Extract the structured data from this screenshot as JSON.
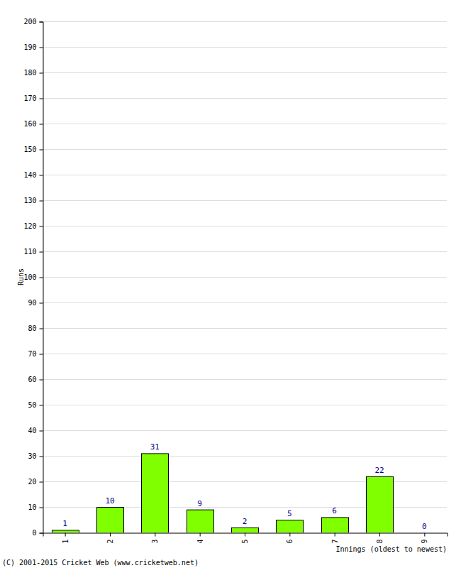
{
  "chart_data": {
    "type": "bar",
    "categories": [
      "1",
      "2",
      "3",
      "4",
      "5",
      "6",
      "7",
      "8",
      "9"
    ],
    "values": [
      1,
      10,
      31,
      9,
      2,
      5,
      6,
      22,
      0
    ],
    "color": "#80ff00",
    "ylim": [
      0,
      200
    ],
    "yticks": [
      0,
      10,
      20,
      30,
      40,
      50,
      60,
      70,
      80,
      90,
      100,
      110,
      120,
      130,
      140,
      150,
      160,
      170,
      180,
      190,
      200
    ],
    "grid": true,
    "data_labels": true,
    "y_label": "Runs",
    "x_label": "Innings (oldest to newest)",
    "annotations": [
      "(C) 2001-2015 Cricket Web (www.cricketweb.net)"
    ]
  }
}
